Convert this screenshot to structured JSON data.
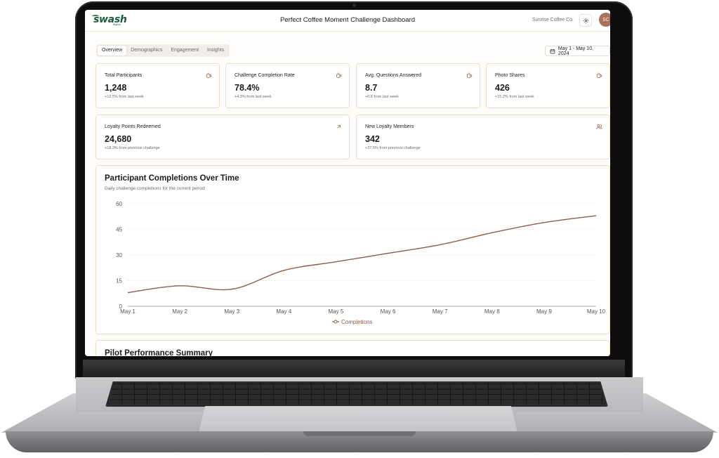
{
  "header": {
    "logo_text": "swash",
    "logo_subtext": "digital",
    "title": "Perfect Coffee Moment Challenge Dashboard",
    "company": "Sunrise Coffee Co.",
    "avatar_initials": "SC"
  },
  "tabs": [
    {
      "label": "Overview",
      "active": true
    },
    {
      "label": "Demographics",
      "active": false
    },
    {
      "label": "Engagement",
      "active": false
    },
    {
      "label": "Insights",
      "active": false
    }
  ],
  "date_range": "May 1 - May 10, 2024",
  "stats": [
    {
      "title": "Total Participants",
      "value": "1,248",
      "change": "+12.5% from last week",
      "icon": "coffee-cup-icon"
    },
    {
      "title": "Challenge Completion Rate",
      "value": "78.4%",
      "change": "+4.3% from last week",
      "icon": "coffee-cup-icon"
    },
    {
      "title": "Avg. Questions Answered",
      "value": "8.7",
      "change": "+0.8 from last week",
      "icon": "coffee-cup-icon"
    },
    {
      "title": "Photo Shares",
      "value": "426",
      "change": "+15.2% from last week",
      "icon": "coffee-cup-icon"
    },
    {
      "title": "Loyalty Points Redeemed",
      "value": "24,680",
      "change": "+18.3% from previous challenge",
      "icon": "arrow-up-right-icon"
    },
    {
      "title": "New Loyalty Members",
      "value": "342",
      "change": "+27.5% from previous challenge",
      "icon": "users-icon"
    }
  ],
  "colors": {
    "accent": "#8b5e4a",
    "card_border": "#f0dcc6",
    "brand_green": "#1e5b3c"
  },
  "chart_data": {
    "type": "line",
    "title": "Participant Completions Over Time",
    "subtitle": "Daily challenge completions for the current period",
    "x": [
      "May 1",
      "May 2",
      "May 3",
      "May 4",
      "May 5",
      "May 6",
      "May 7",
      "May 8",
      "May 9",
      "May 10"
    ],
    "series": [
      {
        "name": "Completions",
        "values": [
          8,
          12,
          10,
          21,
          26,
          31,
          36,
          43,
          49,
          53
        ]
      }
    ],
    "yticks": [
      0,
      15,
      30,
      45,
      60
    ],
    "ylim": [
      0,
      60
    ],
    "grid": true,
    "legend": "bottom-center"
  },
  "next_section_title": "Pilot Performance Summary"
}
